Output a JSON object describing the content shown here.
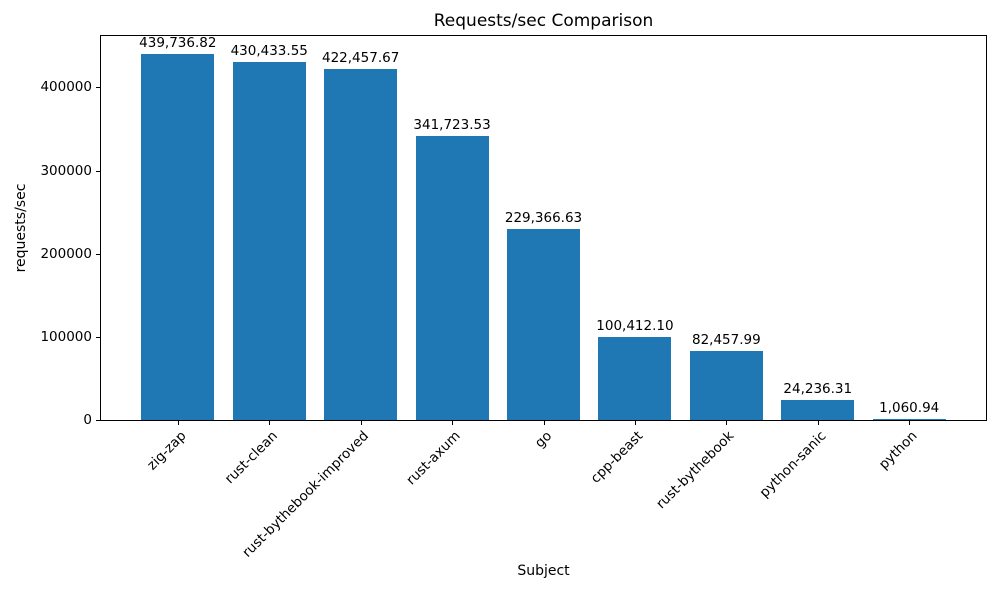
{
  "chart_data": {
    "type": "bar",
    "title": "Requests/sec Comparison",
    "xlabel": "Subject",
    "ylabel": "requests/sec",
    "categories": [
      "zig-zap",
      "rust-clean",
      "rust-bythebook-improved",
      "rust-axum",
      "go",
      "cpp-beast",
      "rust-bythebook",
      "python-sanic",
      "python"
    ],
    "values": [
      439736.82,
      430433.55,
      422457.67,
      341723.53,
      229366.63,
      100412.1,
      82457.99,
      24236.31,
      1060.94
    ],
    "bar_labels": [
      "439,736.82",
      "430,433.55",
      "422,457.67",
      "341,723.53",
      "229,366.63",
      "100,412.10",
      "82,457.99",
      "24,236.31",
      "1,060.94"
    ],
    "y_ticks": [
      0,
      100000,
      200000,
      300000,
      400000
    ],
    "ylim": [
      0,
      461723.66
    ],
    "bar_color": "#1f77b4",
    "x_tick_rotation": 45,
    "grid": false,
    "legend": null
  }
}
